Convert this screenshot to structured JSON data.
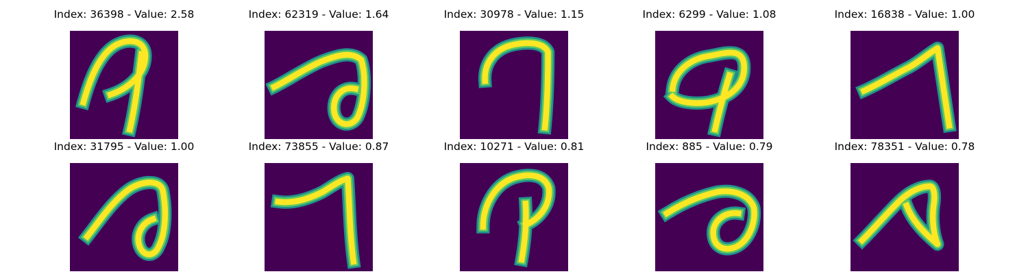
{
  "colors": {
    "background": "#440154",
    "stroke_outer": "#21918c",
    "stroke_mid": "#5ec962",
    "stroke_core": "#fde725"
  },
  "tiles": [
    {
      "title": "Index: 36398 - Value: 2.58",
      "glyph": "g0"
    },
    {
      "title": "Index: 62319 - Value: 1.64",
      "glyph": "g1"
    },
    {
      "title": "Index: 30978 - Value: 1.15",
      "glyph": "g2"
    },
    {
      "title": "Index: 6299 - Value: 1.08",
      "glyph": "g3"
    },
    {
      "title": "Index: 16838 - Value: 1.00",
      "glyph": "g4"
    },
    {
      "title": "Index: 31795 - Value: 1.00",
      "glyph": "g5"
    },
    {
      "title": "Index: 73855 - Value: 0.87",
      "glyph": "g6"
    },
    {
      "title": "Index: 10271 - Value: 0.81",
      "glyph": "g7"
    },
    {
      "title": "Index: 885 - Value: 0.79",
      "glyph": "g8"
    },
    {
      "title": "Index: 78351 - Value: 0.78",
      "glyph": "g9"
    }
  ]
}
